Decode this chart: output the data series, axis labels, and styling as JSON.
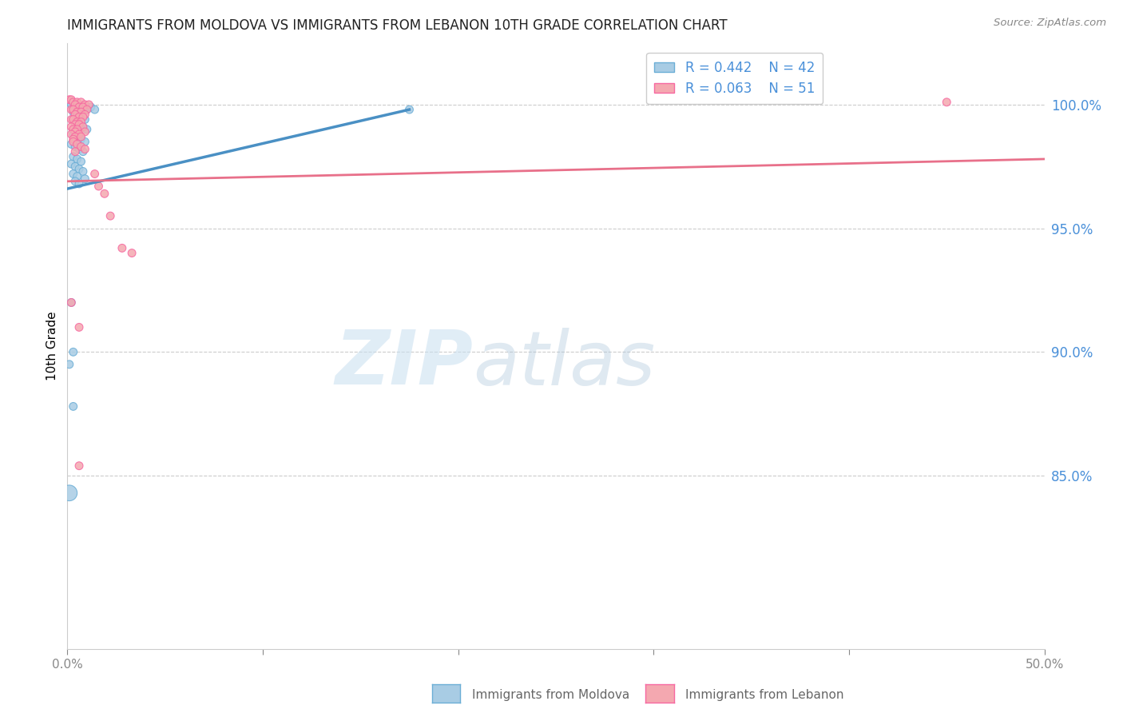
{
  "title": "IMMIGRANTS FROM MOLDOVA VS IMMIGRANTS FROM LEBANON 10TH GRADE CORRELATION CHART",
  "source": "Source: ZipAtlas.com",
  "ylabel": "10th Grade",
  "ylabel_right_labels": [
    "100.0%",
    "95.0%",
    "90.0%",
    "85.0%"
  ],
  "ylabel_right_values": [
    1.0,
    0.95,
    0.9,
    0.85
  ],
  "xlim": [
    0.0,
    0.5
  ],
  "ylim": [
    0.78,
    1.025
  ],
  "legend1_r": "0.442",
  "legend1_n": "42",
  "legend2_r": "0.063",
  "legend2_n": "51",
  "moldova_color": "#a8cce4",
  "lebanon_color": "#f4a8b0",
  "moldova_edge_color": "#6baed6",
  "lebanon_edge_color": "#f768a1",
  "moldova_trendline_color": "#4a90c4",
  "lebanon_trendline_color": "#e8708a",
  "watermark_zip": "ZIP",
  "watermark_atlas": "atlas",
  "moldova_trendline": [
    [
      0.0,
      0.966
    ],
    [
      0.175,
      0.998
    ]
  ],
  "lebanon_trendline": [
    [
      0.0,
      0.969
    ],
    [
      0.5,
      0.978
    ]
  ],
  "moldova_points": [
    [
      0.001,
      1.001
    ],
    [
      0.002,
      1.0
    ],
    [
      0.004,
      0.999
    ],
    [
      0.006,
      0.999
    ],
    [
      0.008,
      0.999
    ],
    [
      0.01,
      0.998
    ],
    [
      0.012,
      0.999
    ],
    [
      0.014,
      0.998
    ],
    [
      0.003,
      0.997
    ],
    [
      0.005,
      0.996
    ],
    [
      0.007,
      0.995
    ],
    [
      0.009,
      0.994
    ],
    [
      0.004,
      0.993
    ],
    [
      0.006,
      0.992
    ],
    [
      0.008,
      0.991
    ],
    [
      0.01,
      0.99
    ],
    [
      0.003,
      0.988
    ],
    [
      0.005,
      0.987
    ],
    [
      0.007,
      0.986
    ],
    [
      0.009,
      0.985
    ],
    [
      0.002,
      0.984
    ],
    [
      0.004,
      0.983
    ],
    [
      0.006,
      0.982
    ],
    [
      0.008,
      0.981
    ],
    [
      0.003,
      0.979
    ],
    [
      0.005,
      0.978
    ],
    [
      0.007,
      0.977
    ],
    [
      0.002,
      0.976
    ],
    [
      0.004,
      0.975
    ],
    [
      0.006,
      0.974
    ],
    [
      0.008,
      0.973
    ],
    [
      0.003,
      0.972
    ],
    [
      0.005,
      0.971
    ],
    [
      0.009,
      0.97
    ],
    [
      0.004,
      0.969
    ],
    [
      0.006,
      0.968
    ],
    [
      0.002,
      0.92
    ],
    [
      0.003,
      0.9
    ],
    [
      0.003,
      0.878
    ],
    [
      0.001,
      0.895
    ],
    [
      0.001,
      0.843
    ],
    [
      0.175,
      0.998
    ]
  ],
  "moldova_sizes": [
    50,
    50,
    50,
    50,
    50,
    50,
    50,
    50,
    50,
    50,
    50,
    50,
    50,
    50,
    50,
    50,
    50,
    50,
    50,
    50,
    50,
    50,
    50,
    50,
    50,
    50,
    50,
    50,
    50,
    50,
    50,
    50,
    50,
    50,
    50,
    50,
    50,
    50,
    50,
    50,
    200,
    50
  ],
  "lebanon_points": [
    [
      0.001,
      1.002
    ],
    [
      0.002,
      1.002
    ],
    [
      0.003,
      1.001
    ],
    [
      0.005,
      1.001
    ],
    [
      0.007,
      1.001
    ],
    [
      0.009,
      1.0
    ],
    [
      0.011,
      1.0
    ],
    [
      0.004,
      1.0
    ],
    [
      0.006,
      0.999
    ],
    [
      0.008,
      0.999
    ],
    [
      0.01,
      0.998
    ],
    [
      0.002,
      0.998
    ],
    [
      0.003,
      0.998
    ],
    [
      0.005,
      0.997
    ],
    [
      0.007,
      0.997
    ],
    [
      0.009,
      0.996
    ],
    [
      0.004,
      0.996
    ],
    [
      0.006,
      0.995
    ],
    [
      0.008,
      0.995
    ],
    [
      0.002,
      0.994
    ],
    [
      0.003,
      0.994
    ],
    [
      0.005,
      0.993
    ],
    [
      0.007,
      0.993
    ],
    [
      0.004,
      0.992
    ],
    [
      0.006,
      0.992
    ],
    [
      0.008,
      0.991
    ],
    [
      0.002,
      0.991
    ],
    [
      0.003,
      0.99
    ],
    [
      0.005,
      0.99
    ],
    [
      0.009,
      0.989
    ],
    [
      0.004,
      0.989
    ],
    [
      0.006,
      0.988
    ],
    [
      0.002,
      0.988
    ],
    [
      0.004,
      0.987
    ],
    [
      0.007,
      0.987
    ],
    [
      0.003,
      0.986
    ],
    [
      0.014,
      0.972
    ],
    [
      0.016,
      0.967
    ],
    [
      0.019,
      0.964
    ],
    [
      0.022,
      0.955
    ],
    [
      0.002,
      0.92
    ],
    [
      0.006,
      0.91
    ],
    [
      0.006,
      0.854
    ],
    [
      0.028,
      0.942
    ],
    [
      0.033,
      0.94
    ],
    [
      0.45,
      1.001
    ],
    [
      0.003,
      0.985
    ],
    [
      0.005,
      0.984
    ],
    [
      0.007,
      0.983
    ],
    [
      0.009,
      0.982
    ],
    [
      0.004,
      0.981
    ]
  ],
  "lebanon_sizes": [
    50,
    50,
    50,
    50,
    50,
    50,
    50,
    50,
    50,
    50,
    50,
    50,
    50,
    50,
    50,
    50,
    50,
    50,
    50,
    50,
    50,
    50,
    50,
    50,
    50,
    50,
    50,
    50,
    50,
    50,
    50,
    50,
    50,
    50,
    50,
    50,
    50,
    50,
    50,
    50,
    50,
    50,
    50,
    50,
    50,
    50,
    50,
    50,
    50,
    50,
    50
  ]
}
